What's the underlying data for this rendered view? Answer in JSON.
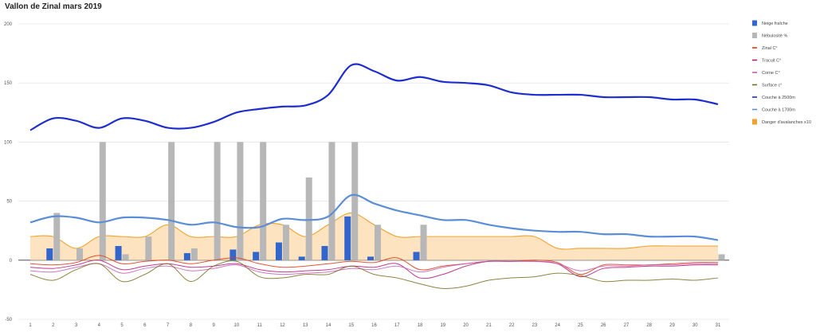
{
  "chart_data": {
    "type": "line",
    "title": "Vallon de Zinal mars 2019",
    "xlabel": "",
    "ylabel": "",
    "x": [
      1,
      2,
      3,
      4,
      5,
      6,
      7,
      8,
      9,
      10,
      11,
      12,
      13,
      14,
      15,
      16,
      17,
      18,
      19,
      20,
      21,
      22,
      23,
      24,
      25,
      26,
      27,
      28,
      29,
      30,
      31
    ],
    "ylim": [
      -50,
      200
    ],
    "yticks": [
      -50,
      0,
      50,
      100,
      150,
      200
    ],
    "grid": true,
    "legend_position": "right",
    "series": [
      {
        "name": "Neige fraîche",
        "kind": "bar",
        "color": "#3366cc",
        "values": [
          0,
          10,
          0,
          0,
          12,
          0,
          0,
          6,
          0,
          9,
          7,
          15,
          3,
          12,
          37,
          3,
          0,
          7,
          0,
          0,
          0,
          0,
          0,
          0,
          0,
          0,
          0,
          0,
          0,
          0,
          0
        ]
      },
      {
        "name": "Nébulosité %",
        "kind": "bar",
        "color": "#b7b7b7",
        "values": [
          0,
          40,
          10,
          100,
          5,
          20,
          100,
          10,
          100,
          100,
          100,
          30,
          70,
          100,
          100,
          30,
          0,
          30,
          0,
          0,
          0,
          0,
          0,
          0,
          0,
          0,
          0,
          0,
          0,
          0,
          5
        ]
      },
      {
        "name": "Zinal C°",
        "kind": "line",
        "color": "#dc3912",
        "values": [
          -3,
          -4,
          -2,
          4,
          -3,
          -1,
          0,
          -3,
          0,
          2,
          -3,
          -6,
          -5,
          -3,
          -1,
          -2,
          2,
          -8,
          -5,
          -3,
          -1,
          -1,
          0,
          -2,
          -12,
          -4,
          -4,
          -4,
          -3,
          -2,
          -2
        ]
      },
      {
        "name": "Tracuit C°",
        "kind": "line",
        "color": "#b5197a",
        "values": [
          -6,
          -7,
          -4,
          0,
          -8,
          -5,
          -3,
          -6,
          -5,
          -3,
          -8,
          -10,
          -9,
          -8,
          -5,
          -6,
          -3,
          -15,
          -12,
          -5,
          -1,
          -1,
          -1,
          -3,
          -14,
          -7,
          -6,
          -5,
          -5,
          -4,
          -4
        ]
      },
      {
        "name": "Corne C°",
        "kind": "line",
        "color": "#c45fb8",
        "values": [
          -9,
          -10,
          -6,
          -3,
          -11,
          -7,
          -5,
          -9,
          -7,
          -4,
          -10,
          -12,
          -11,
          -10,
          -7,
          -8,
          -5,
          -10,
          -6,
          -3,
          -1,
          -1,
          -1,
          -3,
          -9,
          -5,
          -5,
          -4,
          -4,
          -3,
          -3
        ]
      },
      {
        "name": "Surface c°",
        "kind": "line",
        "color": "#7a6e1e",
        "values": [
          -12,
          -17,
          -8,
          -3,
          -18,
          -12,
          -3,
          -18,
          -5,
          -1,
          -14,
          -15,
          -12,
          -12,
          -5,
          -12,
          -15,
          -20,
          -24,
          -22,
          -17,
          -15,
          -14,
          -11,
          -13,
          -18,
          -17,
          -17,
          -16,
          -17,
          -15
        ]
      },
      {
        "name": "Couche à 2500m",
        "kind": "line",
        "color": "#1d2ecc",
        "values": [
          110,
          120,
          118,
          112,
          120,
          118,
          112,
          112,
          117,
          125,
          128,
          130,
          131,
          140,
          165,
          160,
          152,
          155,
          151,
          150,
          148,
          142,
          140,
          140,
          140,
          138,
          138,
          138,
          136,
          136,
          132
        ]
      },
      {
        "name": "Couche à 1700m",
        "kind": "line",
        "color": "#5b8ed6",
        "values": [
          32,
          37,
          36,
          32,
          36,
          36,
          34,
          30,
          32,
          28,
          28,
          35,
          34,
          37,
          55,
          48,
          42,
          38,
          34,
          34,
          30,
          27,
          25,
          24,
          24,
          22,
          22,
          20,
          20,
          20,
          17
        ]
      },
      {
        "name": "Danger d'avalanches x10",
        "kind": "area",
        "color": "#f0a22e",
        "fill": "#fde3bf",
        "values": [
          20,
          20,
          10,
          20,
          20,
          20,
          30,
          20,
          20,
          20,
          30,
          30,
          20,
          30,
          40,
          30,
          20,
          20,
          20,
          20,
          20,
          20,
          20,
          10,
          10,
          10,
          10,
          12,
          12,
          12,
          12
        ]
      }
    ]
  }
}
